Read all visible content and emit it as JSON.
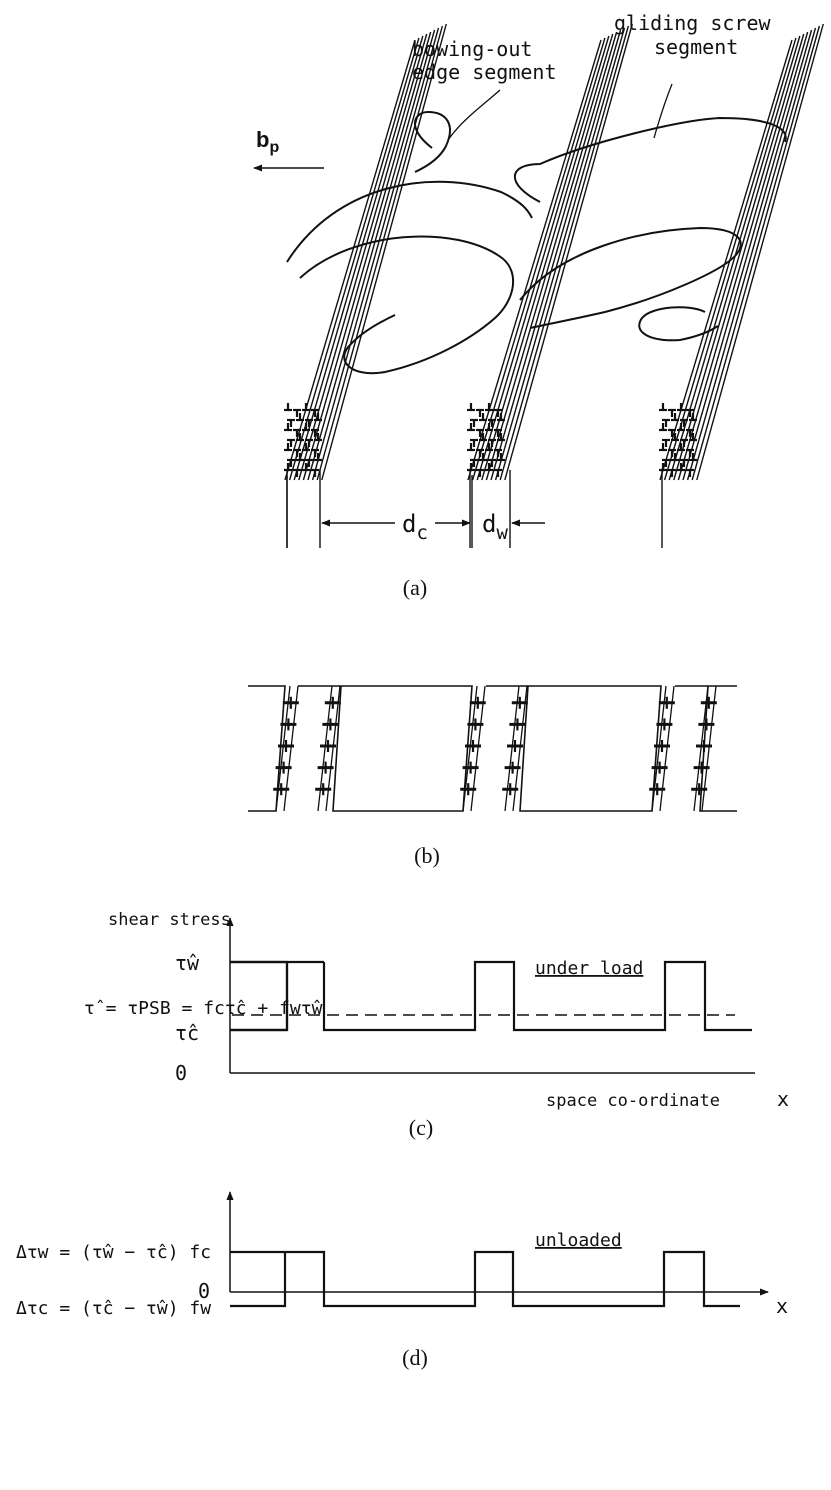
{
  "panel_a": {
    "caption": "(a)",
    "label_bowing_line1": "bowing-out",
    "label_bowing_line2": "edge segment",
    "label_gliding_line1": "gliding screw",
    "label_gliding_line2": "segment",
    "burgers_vector_main": "b",
    "burgers_vector_sub": "p",
    "dim_channel_main": "d",
    "dim_channel_sub": "c",
    "dim_wall_main": "d",
    "dim_wall_sub": "w"
  },
  "panel_b": {
    "caption": "(b)"
  },
  "panel_c": {
    "caption": "(c)",
    "y_axis_label": "shear stress",
    "x_axis_label": "space co-ordinate",
    "x_axis_symbol": "x",
    "level_wall": "τ̂w",
    "level_channel": "τ̂c",
    "level_zero": "0",
    "mean_stress_formula": "τ̂ = τPSB = fcτ̂c + fwτ̂w",
    "annotation": "under load"
  },
  "panel_d": {
    "caption": "(d)",
    "x_axis_symbol": "x",
    "level_wall": "Δτw = (τ̂w − τ̂c) fc",
    "level_channel": "Δτc = (τ̂c − τ̂w) fw",
    "level_zero": "0",
    "annotation": "unloaded"
  },
  "colors": {
    "ink": "#111111",
    "background": "#ffffff"
  }
}
